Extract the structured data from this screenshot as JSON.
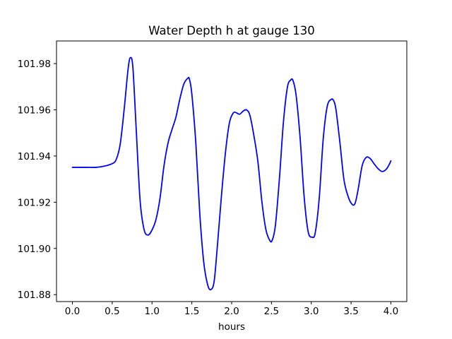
{
  "chart_data": {
    "type": "line",
    "title": "Water Depth h at gauge 130",
    "xlabel": "hours",
    "ylabel": "",
    "xlim": [
      -0.2,
      4.2
    ],
    "ylim": [
      101.877,
      101.9898
    ],
    "xticks": [
      0.0,
      0.5,
      1.0,
      1.5,
      2.0,
      2.5,
      3.0,
      3.5,
      4.0
    ],
    "xtick_labels": [
      "0.0",
      "0.5",
      "1.0",
      "1.5",
      "2.0",
      "2.5",
      "3.0",
      "3.5",
      "4.0"
    ],
    "yticks": [
      101.88,
      101.9,
      101.92,
      101.94,
      101.96,
      101.98
    ],
    "ytick_labels": [
      "101.88",
      "101.90",
      "101.92",
      "101.94",
      "101.96",
      "101.98"
    ],
    "grid": false,
    "legend": "none",
    "series": [
      {
        "color": "#0000ff",
        "x": [
          0.0,
          0.1,
          0.2,
          0.3,
          0.4,
          0.5,
          0.55,
          0.6,
          0.65,
          0.7,
          0.73,
          0.76,
          0.8,
          0.85,
          0.9,
          0.95,
          1.0,
          1.05,
          1.1,
          1.15,
          1.2,
          1.25,
          1.3,
          1.35,
          1.4,
          1.45,
          1.47,
          1.5,
          1.55,
          1.6,
          1.65,
          1.7,
          1.74,
          1.78,
          1.82,
          1.87,
          1.92,
          1.97,
          2.02,
          2.06,
          2.1,
          2.15,
          2.19,
          2.23,
          2.28,
          2.33,
          2.38,
          2.43,
          2.48,
          2.51,
          2.55,
          2.6,
          2.65,
          2.7,
          2.74,
          2.77,
          2.81,
          2.86,
          2.91,
          2.96,
          3.01,
          3.05,
          3.1,
          3.15,
          3.2,
          3.25,
          3.28,
          3.31,
          3.36,
          3.41,
          3.46,
          3.51,
          3.55,
          3.59,
          3.64,
          3.69,
          3.74,
          3.79,
          3.84,
          3.89,
          3.94,
          3.98,
          4.0
        ],
        "y": [
          101.9351,
          101.9351,
          101.9351,
          101.9351,
          101.9356,
          101.9367,
          101.9385,
          101.9451,
          101.9602,
          101.9779,
          101.9826,
          101.9781,
          101.9524,
          101.9208,
          101.9082,
          101.9058,
          101.908,
          101.9126,
          101.9217,
          101.9357,
          101.9455,
          101.9514,
          101.9568,
          101.9648,
          101.9712,
          101.9737,
          101.9732,
          101.9668,
          101.9456,
          101.9149,
          101.8939,
          101.8841,
          101.8822,
          101.8857,
          101.9007,
          101.922,
          101.9408,
          101.954,
          101.9586,
          101.9587,
          101.9581,
          101.9596,
          101.9599,
          101.9575,
          101.9487,
          101.9375,
          101.9202,
          101.9082,
          101.9034,
          101.9036,
          101.9101,
          101.9302,
          101.9545,
          101.9697,
          101.9728,
          101.9727,
          101.9662,
          101.9478,
          101.9226,
          101.9074,
          101.9049,
          101.9068,
          101.9217,
          101.9473,
          101.9614,
          101.9645,
          101.964,
          101.9602,
          101.9458,
          101.9299,
          101.9228,
          101.9192,
          101.9195,
          101.9258,
          101.9359,
          101.9394,
          101.9389,
          101.9366,
          101.9345,
          101.9333,
          101.9342,
          101.9364,
          101.9379
        ]
      }
    ]
  }
}
